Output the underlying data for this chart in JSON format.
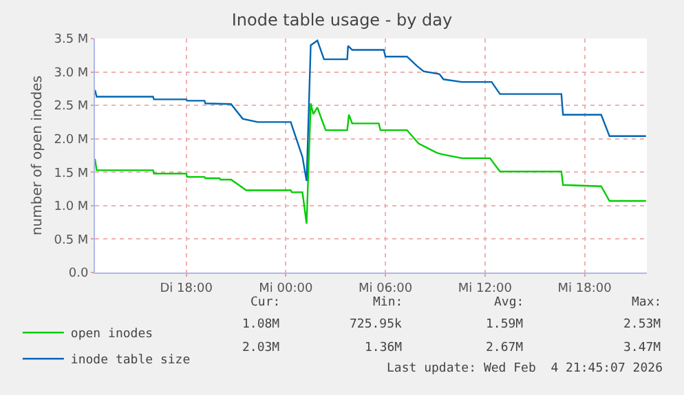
{
  "chart_data": {
    "type": "line",
    "title": "Inode table usage - by day",
    "ylabel": "number of open inodes",
    "xlim": [
      "2026-02-03T12:30",
      "2026-02-04T21:45"
    ],
    "xticks": [
      {
        "value": "2026-02-03T18:00",
        "label": "Di 18:00"
      },
      {
        "value": "2026-02-04T00:00",
        "label": "Mi 00:00"
      },
      {
        "value": "2026-02-04T06:00",
        "label": "Mi 06:00"
      },
      {
        "value": "2026-02-04T12:00",
        "label": "Mi 12:00"
      },
      {
        "value": "2026-02-04T18:00",
        "label": "Mi 18:00"
      }
    ],
    "ylim": [
      0,
      3.5
    ],
    "yticks": [
      {
        "value": 0,
        "label": "0.0"
      },
      {
        "value": 0.5,
        "label": "0.5 M"
      },
      {
        "value": 1,
        "label": "1.0 M"
      },
      {
        "value": 1.5,
        "label": "1.5 M"
      },
      {
        "value": 2,
        "label": "2.0 M"
      },
      {
        "value": 2.5,
        "label": "2.5 M"
      },
      {
        "value": 3,
        "label": "3.0 M"
      },
      {
        "value": 3.5,
        "label": "3.5 M"
      }
    ],
    "grid": true,
    "legend": "bottom",
    "marker": "none",
    "line_style": "solid",
    "series": [
      {
        "name": "open inodes",
        "color": "#00cc00",
        "x": [
          "2026-02-03T12:30",
          "2026-02-03T12:36",
          "2026-02-03T16:00",
          "2026-02-03T16:03",
          "2026-02-03T18:00",
          "2026-02-03T18:03",
          "2026-02-03T19:06",
          "2026-02-03T19:09",
          "2026-02-03T20:00",
          "2026-02-03T20:03",
          "2026-02-03T20:42",
          "2026-02-03T21:30",
          "2026-02-03T21:36",
          "2026-02-04T00:18",
          "2026-02-04T00:21",
          "2026-02-04T01:00",
          "2026-02-04T01:15",
          "2026-02-04T01:30",
          "2026-02-04T01:39",
          "2026-02-04T01:54",
          "2026-02-04T02:06",
          "2026-02-04T02:24",
          "2026-02-04T03:42",
          "2026-02-04T03:48",
          "2026-02-04T04:00",
          "2026-02-04T05:36",
          "2026-02-04T05:42",
          "2026-02-04T07:18",
          "2026-02-04T08:00",
          "2026-02-04T09:06",
          "2026-02-04T09:24",
          "2026-02-04T10:36",
          "2026-02-04T12:18",
          "2026-02-04T12:54",
          "2026-02-04T16:36",
          "2026-02-04T16:42",
          "2026-02-04T19:00",
          "2026-02-04T19:30",
          "2026-02-04T21:42"
        ],
        "values": [
          1.7,
          1.53,
          1.53,
          1.48,
          1.48,
          1.43,
          1.43,
          1.41,
          1.41,
          1.39,
          1.39,
          1.25,
          1.23,
          1.23,
          1.2,
          1.2,
          0.73,
          2.53,
          2.37,
          2.47,
          2.33,
          2.13,
          2.13,
          2.36,
          2.23,
          2.23,
          2.13,
          2.13,
          1.93,
          1.79,
          1.77,
          1.71,
          1.71,
          1.51,
          1.51,
          1.31,
          1.29,
          1.07,
          1.07
        ]
      },
      {
        "name": "inode table size",
        "color": "#0066b3",
        "x": [
          "2026-02-03T12:30",
          "2026-02-03T12:36",
          "2026-02-03T16:00",
          "2026-02-03T16:03",
          "2026-02-03T18:00",
          "2026-02-03T18:03",
          "2026-02-03T19:06",
          "2026-02-03T19:09",
          "2026-02-03T20:42",
          "2026-02-03T21:24",
          "2026-02-03T22:18",
          "2026-02-04T00:18",
          "2026-02-04T00:21",
          "2026-02-04T01:00",
          "2026-02-04T01:15",
          "2026-02-04T01:30",
          "2026-02-04T01:54",
          "2026-02-04T02:18",
          "2026-02-04T03:42",
          "2026-02-04T03:45",
          "2026-02-04T04:00",
          "2026-02-04T05:54",
          "2026-02-04T06:00",
          "2026-02-04T07:18",
          "2026-02-04T07:54",
          "2026-02-04T08:18",
          "2026-02-04T09:15",
          "2026-02-04T09:30",
          "2026-02-04T10:36",
          "2026-02-04T12:24",
          "2026-02-04T12:54",
          "2026-02-04T16:36",
          "2026-02-04T16:42",
          "2026-02-04T19:00",
          "2026-02-04T19:30",
          "2026-02-04T21:42"
        ],
        "values": [
          2.73,
          2.63,
          2.63,
          2.59,
          2.59,
          2.57,
          2.57,
          2.53,
          2.52,
          2.3,
          2.25,
          2.25,
          2.21,
          1.73,
          1.37,
          3.4,
          3.47,
          3.19,
          3.19,
          3.39,
          3.33,
          3.33,
          3.23,
          3.23,
          3.09,
          3.01,
          2.97,
          2.89,
          2.85,
          2.85,
          2.67,
          2.67,
          2.36,
          2.36,
          2.04,
          2.04
        ]
      }
    ],
    "annotations": [
      "Cur:",
      "Min:",
      "Avg:",
      "Max:",
      "1.08M",
      "725.95k",
      "1.59M",
      "2.53M",
      "2.03M",
      "1.36M",
      "2.67M",
      "3.47M",
      "Last update: Wed Feb  4 21:45:07 2026"
    ]
  }
}
